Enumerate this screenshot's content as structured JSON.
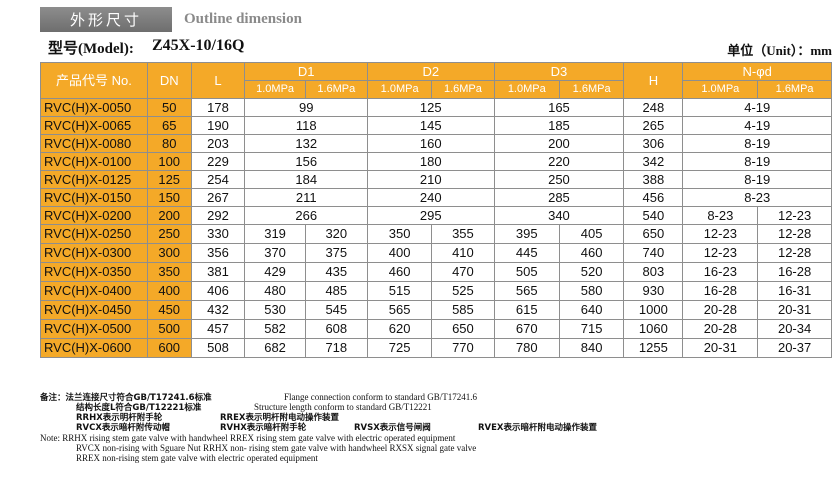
{
  "header": {
    "title_cn": "外形尺寸",
    "title_en": "Outline dimension",
    "model_label": "型号(Model):",
    "model_value": "Z45X-10/16Q",
    "unit": "单位（Unit）：mm"
  },
  "table": {
    "headers": {
      "code": "产品代号 No.",
      "dn": "DN",
      "l": "L",
      "d1": "D1",
      "d2": "D2",
      "d3": "D3",
      "h": "H",
      "n_d": "N-φd",
      "p1": "1.0MPa",
      "p2": "1.6MPa"
    },
    "rows": [
      {
        "code": "RVC(H)X-0050",
        "dn": "50",
        "l": "178",
        "d1": [
          "99"
        ],
        "d2": [
          "125"
        ],
        "d3": [
          "165"
        ],
        "h": "248",
        "nd": [
          "4-19"
        ]
      },
      {
        "code": "RVC(H)X-0065",
        "dn": "65",
        "l": "190",
        "d1": [
          "118"
        ],
        "d2": [
          "145"
        ],
        "d3": [
          "185"
        ],
        "h": "265",
        "nd": [
          "4-19"
        ]
      },
      {
        "code": "RVC(H)X-0080",
        "dn": "80",
        "l": "203",
        "d1": [
          "132"
        ],
        "d2": [
          "160"
        ],
        "d3": [
          "200"
        ],
        "h": "306",
        "nd": [
          "8-19"
        ]
      },
      {
        "code": "RVC(H)X-0100",
        "dn": "100",
        "l": "229",
        "d1": [
          "156"
        ],
        "d2": [
          "180"
        ],
        "d3": [
          "220"
        ],
        "h": "342",
        "nd": [
          "8-19"
        ]
      },
      {
        "code": "RVC(H)X-0125",
        "dn": "125",
        "l": "254",
        "d1": [
          "184"
        ],
        "d2": [
          "210"
        ],
        "d3": [
          "250"
        ],
        "h": "388",
        "nd": [
          "8-19"
        ]
      },
      {
        "code": "RVC(H)X-0150",
        "dn": "150",
        "l": "267",
        "d1": [
          "211"
        ],
        "d2": [
          "240"
        ],
        "d3": [
          "285"
        ],
        "h": "456",
        "nd": [
          "8-23"
        ]
      },
      {
        "code": "RVC(H)X-0200",
        "dn": "200",
        "l": "292",
        "d1": [
          "266"
        ],
        "d2": [
          "295"
        ],
        "d3": [
          "340"
        ],
        "h": "540",
        "nd": [
          "8-23",
          "12-23"
        ]
      },
      {
        "code": "RVC(H)X-0250",
        "dn": "250",
        "l": "330",
        "d1": [
          "319",
          "320"
        ],
        "d2": [
          "350",
          "355"
        ],
        "d3": [
          "395",
          "405"
        ],
        "h": "650",
        "nd": [
          "12-23",
          "12-28"
        ]
      },
      {
        "code": "RVC(H)X-0300",
        "dn": "300",
        "l": "356",
        "d1": [
          "370",
          "375"
        ],
        "d2": [
          "400",
          "410"
        ],
        "d3": [
          "445",
          "460"
        ],
        "h": "740",
        "nd": [
          "12-23",
          "12-28"
        ]
      },
      {
        "code": "RVC(H)X-0350",
        "dn": "350",
        "l": "381",
        "d1": [
          "429",
          "435"
        ],
        "d2": [
          "460",
          "470"
        ],
        "d3": [
          "505",
          "520"
        ],
        "h": "803",
        "nd": [
          "16-23",
          "16-28"
        ]
      },
      {
        "code": "RVC(H)X-0400",
        "dn": "400",
        "l": "406",
        "d1": [
          "480",
          "485"
        ],
        "d2": [
          "515",
          "525"
        ],
        "d3": [
          "565",
          "580"
        ],
        "h": "930",
        "nd": [
          "16-28",
          "16-31"
        ]
      },
      {
        "code": "RVC(H)X-0450",
        "dn": "450",
        "l": "432",
        "d1": [
          "530",
          "545"
        ],
        "d2": [
          "565",
          "585"
        ],
        "d3": [
          "615",
          "640"
        ],
        "h": "1000",
        "nd": [
          "20-28",
          "20-31"
        ]
      },
      {
        "code": "RVC(H)X-0500",
        "dn": "500",
        "l": "457",
        "d1": [
          "582",
          "608"
        ],
        "d2": [
          "620",
          "650"
        ],
        "d3": [
          "670",
          "715"
        ],
        "h": "1060",
        "nd": [
          "20-28",
          "20-34"
        ]
      },
      {
        "code": "RVC(H)X-0600",
        "dn": "600",
        "l": "508",
        "d1": [
          "682",
          "718"
        ],
        "d2": [
          "725",
          "770"
        ],
        "d3": [
          "780",
          "840"
        ],
        "h": "1255",
        "nd": [
          "20-31",
          "20-37"
        ]
      }
    ]
  },
  "notes": {
    "n1_cn": "备注：法兰连接尺寸符合GB/T17241.6标准",
    "n1_en": "Flange connection conform to standard GB/T17241.6",
    "n2_cn": "结构长度L符合GB/T12221标准",
    "n2_en": "Structure length conform to standard GB/T12221",
    "n3_a": "RRHX表示明杆附手轮",
    "n3_b": "RREX表示明杆附电动操作装置",
    "n4_a": "RVCX表示暗杆附传动帽",
    "n4_b": "RVHX表示暗杆附手轮",
    "n4_c": "RVSX表示信号闸阀",
    "n4_d": "RVEX表示暗杆附电动操作装置",
    "n5": "Note:  RRHX   rising stem gate valve with handwheel    RREX  rising stem gate valve with electric operated equipment",
    "n6": "RVCX  non-rising with Sguare Nut    RRHX  non- rising stem gate valve with handwheel    RXSX  signal gate valve",
    "n7": "RREX non-rising stem gate valve with electric operated equipment"
  }
}
